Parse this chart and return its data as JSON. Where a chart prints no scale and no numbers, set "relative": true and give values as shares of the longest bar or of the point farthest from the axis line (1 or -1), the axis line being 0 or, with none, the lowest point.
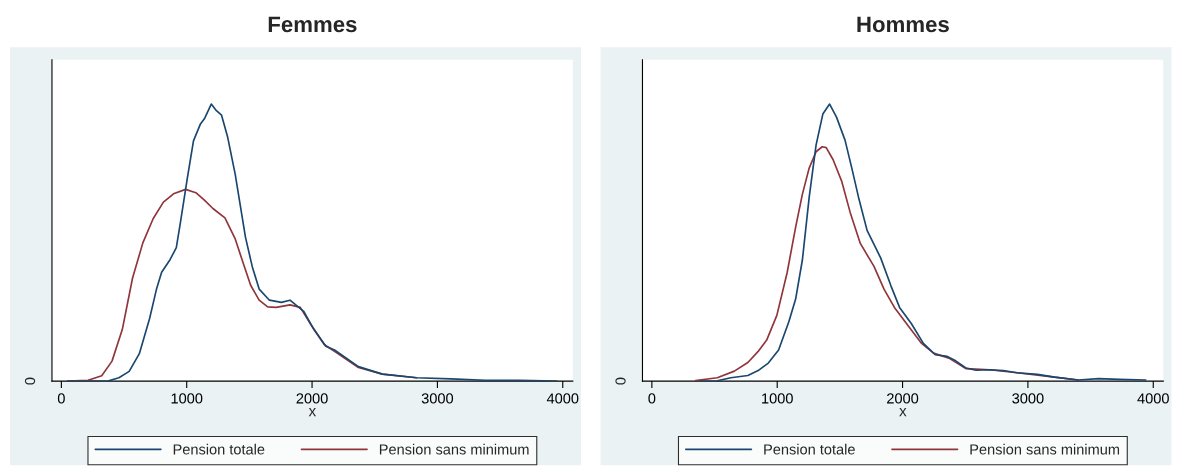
{
  "chart_data": [
    {
      "type": "line",
      "title": "Femmes",
      "xlabel": "x",
      "relative": true,
      "legend": "bottom",
      "xlim": [
        -75,
        4080
      ],
      "xticks": [
        0,
        1000,
        2000,
        3000,
        4000
      ],
      "annotations": [
        "0"
      ],
      "series": [
        {
          "name": "Pension totale",
          "color": "#1a476f",
          "x": [
            50,
            377,
            459,
            541,
            622,
            704,
            759,
            800,
            868,
            917,
            950,
            1005,
            1054,
            1108,
            1141,
            1196,
            1237,
            1278,
            1327,
            1387,
            1469,
            1523,
            1578,
            1660,
            1755,
            1824,
            1933,
            2015,
            2110,
            2179,
            2370,
            2561,
            2834,
            3107,
            3380,
            3653,
            3953
          ],
          "values": [
            0,
            0.001,
            0.012,
            0.035,
            0.099,
            0.226,
            0.332,
            0.393,
            0.439,
            0.482,
            0.573,
            0.733,
            0.867,
            0.927,
            0.947,
            1.0,
            0.976,
            0.96,
            0.88,
            0.746,
            0.519,
            0.413,
            0.332,
            0.292,
            0.284,
            0.292,
            0.252,
            0.186,
            0.126,
            0.112,
            0.052,
            0.025,
            0.012,
            0.008,
            0.003,
            0.003,
            0
          ]
        },
        {
          "name": "Pension sans minimum",
          "color": "#90353b",
          "x": [
            50,
            213,
            322,
            404,
            486,
            568,
            650,
            732,
            814,
            895,
            991,
            1073,
            1141,
            1209,
            1305,
            1387,
            1441,
            1510,
            1578,
            1646,
            1714,
            1824,
            1906,
            1988,
            2097,
            2206,
            2370,
            2561,
            2834
          ],
          "values": [
            0,
            0.003,
            0.019,
            0.072,
            0.186,
            0.372,
            0.499,
            0.586,
            0.646,
            0.676,
            0.692,
            0.68,
            0.653,
            0.623,
            0.589,
            0.513,
            0.439,
            0.346,
            0.292,
            0.268,
            0.266,
            0.275,
            0.266,
            0.206,
            0.132,
            0.099,
            0.049,
            0.025,
            0.012
          ]
        }
      ]
    },
    {
      "type": "line",
      "title": "Hommes",
      "xlabel": "x",
      "relative": true,
      "legend": "bottom",
      "xlim": [
        -75,
        4080
      ],
      "xticks": [
        0,
        1000,
        2000,
        3000,
        4000
      ],
      "annotations": [
        "0"
      ],
      "series": [
        {
          "name": "Pension totale",
          "color": "#1a476f",
          "x": [
            380,
            522,
            630,
            766,
            848,
            929,
            1011,
            1092,
            1147,
            1201,
            1255,
            1310,
            1364,
            1418,
            1473,
            1541,
            1595,
            1649,
            1717,
            1826,
            1908,
            1976,
            2071,
            2166,
            2261,
            2356,
            2424,
            2505,
            2587,
            2696,
            2804,
            2913,
            3076,
            3212,
            3402,
            3565,
            3728,
            3940
          ],
          "values": [
            0,
            0.001,
            0.012,
            0.02,
            0.038,
            0.065,
            0.112,
            0.213,
            0.296,
            0.438,
            0.663,
            0.852,
            0.964,
            1.0,
            0.953,
            0.87,
            0.769,
            0.663,
            0.544,
            0.444,
            0.343,
            0.266,
            0.207,
            0.136,
            0.095,
            0.089,
            0.073,
            0.047,
            0.039,
            0.041,
            0.038,
            0.03,
            0.024,
            0.014,
            0.004,
            0.009,
            0.006,
            0.004
          ]
        },
        {
          "name": "Pension sans minimum",
          "color": "#90353b",
          "x": [
            348,
            522,
            658,
            766,
            848,
            916,
            997,
            1079,
            1147,
            1201,
            1255,
            1310,
            1359,
            1391,
            1446,
            1514,
            1582,
            1663,
            1772,
            1853,
            1935,
            2043,
            2152,
            2247,
            2370,
            2505,
            2696,
            2913,
            3212,
            3402
          ],
          "values": [
            0.002,
            0.012,
            0.036,
            0.067,
            0.107,
            0.148,
            0.237,
            0.391,
            0.556,
            0.675,
            0.769,
            0.828,
            0.846,
            0.843,
            0.799,
            0.722,
            0.609,
            0.497,
            0.414,
            0.331,
            0.266,
            0.201,
            0.136,
            0.101,
            0.083,
            0.045,
            0.041,
            0.03,
            0.014,
            0.004
          ]
        }
      ]
    }
  ]
}
